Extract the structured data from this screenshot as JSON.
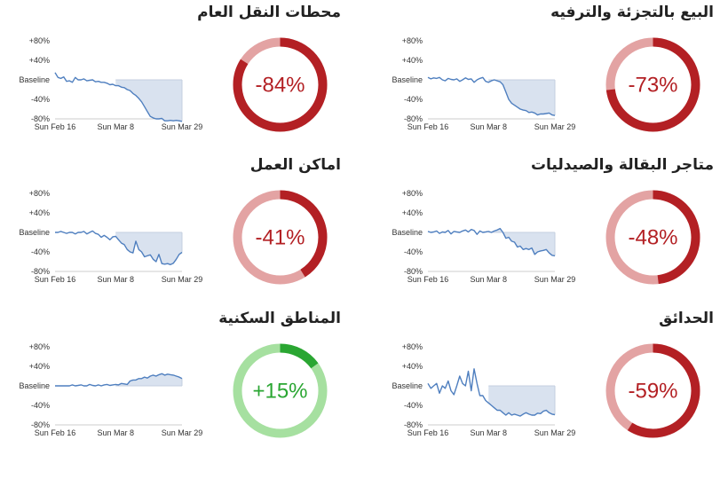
{
  "colors": {
    "decline_ring": "#b32024",
    "decline_track": "#e3a3a3",
    "increase_ring": "#2aa632",
    "increase_track": "#a6e0a0",
    "line": "#4f7fbf",
    "shade": "#d9e2ef",
    "axis": "#cccccc"
  },
  "chart_data": [
    {
      "type": "line",
      "title": "البيع بالتجزئة والترفيه",
      "change_label": "-73%",
      "change_value": -73,
      "y_ticks": [
        "+80%",
        "+40%",
        "Baseline",
        "-40%",
        "-80%"
      ],
      "x_ticks": [
        "Sun Feb 16",
        "Sun Mar 8",
        "Sun Mar 29"
      ],
      "ylim": [
        -80,
        80
      ],
      "values": [
        5,
        2,
        4,
        3,
        5,
        0,
        -2,
        3,
        1,
        0,
        2,
        -3,
        0,
        4,
        1,
        2,
        -5,
        0,
        3,
        5,
        -3,
        -5,
        -2,
        0,
        -2,
        -4,
        -10,
        -25,
        -40,
        -48,
        -52,
        -56,
        -60,
        -62,
        -63,
        -67,
        -66,
        -68,
        -72,
        -70,
        -70,
        -69,
        -68,
        -72,
        -73
      ]
    },
    {
      "type": "line",
      "title": "محطات النقل العام",
      "change_label": "-84%",
      "change_value": -84,
      "y_ticks": [
        "+80%",
        "+40%",
        "Baseline",
        "-40%",
        "-80%"
      ],
      "x_ticks": [
        "Sun Feb 16",
        "Sun Mar 8",
        "Sun Mar 29"
      ],
      "ylim": [
        -80,
        80
      ],
      "values": [
        15,
        5,
        3,
        6,
        -3,
        -2,
        -5,
        5,
        0,
        0,
        2,
        -2,
        -1,
        0,
        -4,
        -3,
        -5,
        -5,
        -7,
        -10,
        -9,
        -12,
        -12,
        -15,
        -16,
        -20,
        -22,
        -28,
        -32,
        -38,
        -45,
        -55,
        -65,
        -75,
        -78,
        -80,
        -80,
        -79,
        -84,
        -84,
        -83,
        -84,
        -83,
        -84,
        -85
      ]
    },
    {
      "type": "line",
      "title": "متاجر البقالة والصيدليات",
      "change_label": "-48%",
      "change_value": -48,
      "y_ticks": [
        "+80%",
        "+40%",
        "Baseline",
        "-40%",
        "-80%"
      ],
      "x_ticks": [
        "Sun Feb 16",
        "Sun Mar 8",
        "Sun Mar 29"
      ],
      "ylim": [
        -80,
        80
      ],
      "values": [
        2,
        0,
        1,
        3,
        -2,
        1,
        0,
        4,
        -3,
        2,
        1,
        0,
        3,
        5,
        1,
        6,
        4,
        -4,
        3,
        0,
        1,
        2,
        0,
        3,
        5,
        8,
        0,
        -12,
        -10,
        -18,
        -20,
        -30,
        -28,
        -35,
        -33,
        -35,
        -32,
        -45,
        -40,
        -38,
        -37,
        -35,
        -42,
        -47,
        -48
      ]
    },
    {
      "type": "line",
      "title": "اماكن العمل",
      "change_label": "-41%",
      "change_value": -41,
      "y_ticks": [
        "+80%",
        "+40%",
        "Baseline",
        "-40%",
        "-80%"
      ],
      "x_ticks": [
        "Sun Feb 16",
        "Sun Mar 8",
        "Sun Mar 29"
      ],
      "ylim": [
        -80,
        80
      ],
      "values": [
        0,
        0,
        2,
        0,
        -2,
        0,
        0,
        -3,
        0,
        0,
        2,
        -3,
        0,
        3,
        -2,
        -4,
        -10,
        -6,
        -10,
        -15,
        -9,
        -8,
        -15,
        -22,
        -25,
        -35,
        -40,
        -42,
        -18,
        -35,
        -40,
        -50,
        -48,
        -46,
        -55,
        -60,
        -45,
        -64,
        -65,
        -64,
        -66,
        -63,
        -55,
        -45,
        -41
      ]
    },
    {
      "type": "line",
      "title": "الحدائق",
      "change_label": "-59%",
      "change_value": -59,
      "y_ticks": [
        "+80%",
        "+40%",
        "Baseline",
        "-40%",
        "-80%"
      ],
      "x_ticks": [
        "Sun Feb 16",
        "Sun Mar 8",
        "Sun Mar 29"
      ],
      "ylim": [
        -80,
        80
      ],
      "values": [
        5,
        -5,
        0,
        5,
        -15,
        0,
        -5,
        10,
        -10,
        -18,
        0,
        20,
        5,
        0,
        30,
        -10,
        35,
        5,
        -20,
        -20,
        -30,
        -35,
        -40,
        -45,
        -50,
        -50,
        -55,
        -60,
        -55,
        -60,
        -58,
        -60,
        -62,
        -58,
        -55,
        -58,
        -60,
        -60,
        -56,
        -57,
        -52,
        -50,
        -55,
        -58,
        -59
      ]
    },
    {
      "type": "line",
      "title": "المناطق السكنية",
      "change_label": "+15%",
      "change_value": 15,
      "y_ticks": [
        "+80%",
        "+40%",
        "Baseline",
        "-40%",
        "-80%"
      ],
      "x_ticks": [
        "Sun Feb 16",
        "Sun Mar 8",
        "Sun Mar 29"
      ],
      "ylim": [
        -80,
        80
      ],
      "values": [
        0,
        0,
        0,
        0,
        0,
        0,
        2,
        0,
        1,
        2,
        0,
        0,
        3,
        1,
        0,
        2,
        0,
        2,
        3,
        1,
        2,
        3,
        2,
        5,
        4,
        3,
        10,
        12,
        12,
        15,
        15,
        18,
        16,
        20,
        22,
        20,
        23,
        25,
        22,
        24,
        23,
        22,
        20,
        18,
        15
      ]
    }
  ]
}
